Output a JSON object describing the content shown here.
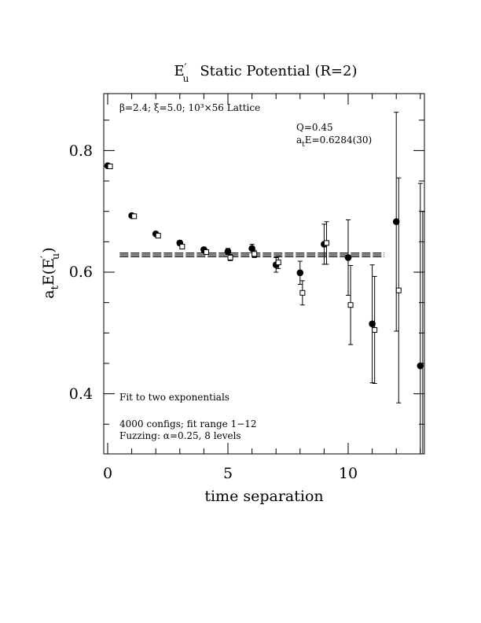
{
  "chart_data": {
    "type": "scatter",
    "title": "E′u  Static Potential (R=2)",
    "title_parts": {
      "symbol": "E",
      "prime": "′",
      "sub": "u",
      "rest": "Static Potential (R=2)"
    },
    "xlabel": "time separation",
    "ylabel": "aₜE(E′u)",
    "ylabel_parts": {
      "a": "a",
      "a_sub": "t",
      "E": "E(E",
      "prime": "′",
      "sub": "u",
      "close": ")"
    },
    "xlim": [
      -0.3,
      13.1
    ],
    "ylim": [
      0.3,
      0.895
    ],
    "xticks": [
      0,
      5,
      10
    ],
    "xtick_labels": [
      "0",
      "5",
      "10"
    ],
    "yticks": [
      0.4,
      0.6,
      0.8
    ],
    "ytick_labels": [
      "0.4",
      "0.6",
      "0.8"
    ],
    "annotations": {
      "lattice": "β=2.4; ξ=5.0; 10³×56 Lattice",
      "q_value": "Q=0.45",
      "fit_energy": "aₜE=0.6284(30)",
      "fit_energy_parts": {
        "a": "a",
        "sub": "t",
        "rest": "E=0.6284(30)"
      },
      "fit_method": "Fit to two exponentials",
      "configs": "4000 configs; fit range 1−12",
      "fuzzing": "Fuzzing: α=0.25, 8 levels"
    },
    "fit": {
      "value": 0.6284,
      "error": 0.003,
      "x_range": [
        0.5,
        11.5
      ]
    },
    "series": [
      {
        "marker": "filled-circle",
        "x": [
          0,
          1,
          2,
          3,
          4,
          5,
          6,
          7,
          8,
          9,
          10,
          11,
          12,
          13
        ],
        "y": [
          0.775,
          0.693,
          0.663,
          0.648,
          0.637,
          0.634,
          0.639,
          0.612,
          0.599,
          0.646,
          0.624,
          0.515,
          0.683,
          0.446
        ],
        "err": [
          0.002,
          0.002,
          0.003,
          0.004,
          0.004,
          0.005,
          0.007,
          0.012,
          0.019,
          0.033,
          0.062,
          0.097,
          0.18,
          0.3
        ]
      },
      {
        "marker": "open-square",
        "x": [
          0.1,
          1.1,
          2.1,
          3.1,
          4.1,
          5.1,
          6.1,
          7.1,
          8.1,
          9.1,
          10.1,
          11.1,
          12.1,
          13.1
        ],
        "y": [
          0.774,
          0.692,
          0.66,
          0.642,
          0.633,
          0.624,
          0.63,
          0.616,
          0.566,
          0.648,
          0.546,
          0.505,
          0.57,
          0.3
        ],
        "err": [
          0.002,
          0.002,
          0.003,
          0.003,
          0.004,
          0.005,
          0.006,
          0.01,
          0.02,
          0.035,
          0.065,
          0.088,
          0.185,
          0.4
        ]
      }
    ]
  }
}
